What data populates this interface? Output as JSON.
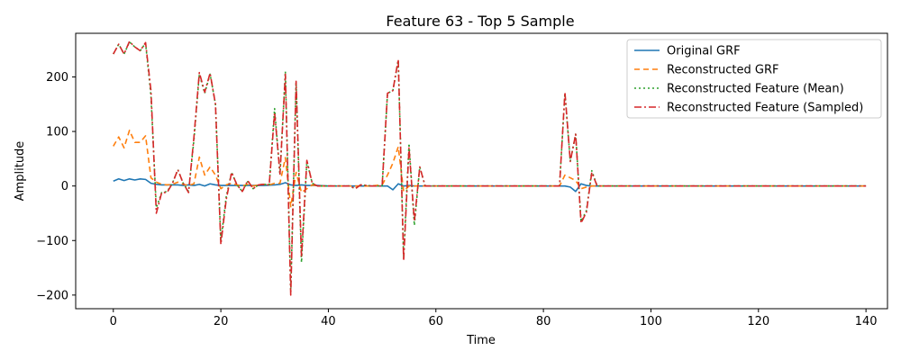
{
  "chart_data": {
    "type": "line",
    "title": "Feature 63 - Top 5 Sample",
    "xlabel": "Time",
    "ylabel": "Amplitude",
    "xlim": [
      -7,
      144
    ],
    "ylim": [
      -225,
      280
    ],
    "xticks": [
      0,
      20,
      40,
      60,
      80,
      100,
      120,
      140
    ],
    "yticks": [
      -200,
      -100,
      0,
      100,
      200
    ],
    "grid": false,
    "legend_position": "top-right",
    "series": [
      {
        "name": "Original GRF",
        "color": "#1f77b4",
        "dash": "solid",
        "points": [
          [
            0,
            9
          ],
          [
            1,
            13
          ],
          [
            2,
            10
          ],
          [
            3,
            13
          ],
          [
            4,
            11
          ],
          [
            5,
            13
          ],
          [
            6,
            12
          ],
          [
            7,
            5
          ],
          [
            8,
            3
          ],
          [
            9,
            2
          ],
          [
            10,
            2
          ],
          [
            11,
            2
          ],
          [
            12,
            2
          ],
          [
            13,
            1
          ],
          [
            14,
            2
          ],
          [
            15,
            1
          ],
          [
            16,
            3
          ],
          [
            17,
            0
          ],
          [
            18,
            4
          ],
          [
            19,
            2
          ],
          [
            20,
            1
          ],
          [
            22,
            1
          ],
          [
            25,
            1
          ],
          [
            28,
            1
          ],
          [
            30,
            2
          ],
          [
            31,
            3
          ],
          [
            32,
            6
          ],
          [
            33,
            2
          ],
          [
            34,
            1
          ],
          [
            35,
            2
          ],
          [
            36,
            1
          ],
          [
            38,
            1
          ],
          [
            40,
            0
          ],
          [
            44,
            0
          ],
          [
            48,
            0
          ],
          [
            50,
            0
          ],
          [
            51,
            0
          ],
          [
            52,
            -7
          ],
          [
            53,
            4
          ],
          [
            54,
            0
          ],
          [
            55,
            1
          ],
          [
            56,
            0
          ],
          [
            58,
            0
          ],
          [
            60,
            0
          ],
          [
            70,
            0
          ],
          [
            80,
            0
          ],
          [
            84,
            0
          ],
          [
            85,
            -2
          ],
          [
            86,
            -10
          ],
          [
            87,
            4
          ],
          [
            88,
            1
          ],
          [
            89,
            0
          ],
          [
            90,
            0
          ],
          [
            100,
            0
          ],
          [
            110,
            0
          ],
          [
            120,
            0
          ],
          [
            130,
            0
          ],
          [
            140,
            0
          ]
        ]
      },
      {
        "name": "Reconstructed GRF",
        "color": "#ff7f0e",
        "dash": "6,4",
        "points": [
          [
            0,
            73
          ],
          [
            1,
            90
          ],
          [
            2,
            70
          ],
          [
            3,
            102
          ],
          [
            4,
            80
          ],
          [
            5,
            80
          ],
          [
            6,
            92
          ],
          [
            7,
            15
          ],
          [
            8,
            7
          ],
          [
            9,
            3
          ],
          [
            10,
            2
          ],
          [
            11,
            3
          ],
          [
            12,
            7
          ],
          [
            13,
            3
          ],
          [
            14,
            1
          ],
          [
            15,
            4
          ],
          [
            16,
            53
          ],
          [
            17,
            20
          ],
          [
            18,
            35
          ],
          [
            19,
            20
          ],
          [
            20,
            -5
          ],
          [
            21,
            2
          ],
          [
            22,
            5
          ],
          [
            23,
            2
          ],
          [
            24,
            0
          ],
          [
            25,
            3
          ],
          [
            26,
            0
          ],
          [
            27,
            2
          ],
          [
            28,
            3
          ],
          [
            29,
            2
          ],
          [
            30,
            5
          ],
          [
            31,
            5
          ],
          [
            32,
            52
          ],
          [
            33,
            -38
          ],
          [
            34,
            25
          ],
          [
            35,
            -12
          ],
          [
            36,
            -5
          ],
          [
            37,
            2
          ],
          [
            38,
            0
          ],
          [
            40,
            0
          ],
          [
            44,
            0
          ],
          [
            48,
            0
          ],
          [
            50,
            2
          ],
          [
            51,
            20
          ],
          [
            52,
            42
          ],
          [
            53,
            72
          ],
          [
            54,
            -10
          ],
          [
            55,
            0
          ],
          [
            56,
            0
          ],
          [
            57,
            0
          ],
          [
            58,
            0
          ],
          [
            60,
            0
          ],
          [
            70,
            0
          ],
          [
            80,
            0
          ],
          [
            83,
            0
          ],
          [
            84,
            20
          ],
          [
            85,
            15
          ],
          [
            86,
            10
          ],
          [
            87,
            -5
          ],
          [
            88,
            -2
          ],
          [
            89,
            0
          ],
          [
            90,
            0
          ],
          [
            100,
            0
          ],
          [
            110,
            0
          ],
          [
            120,
            0
          ],
          [
            130,
            0
          ],
          [
            140,
            0
          ]
        ]
      },
      {
        "name": "Reconstructed Feature (Mean)",
        "color": "#2ca02c",
        "dash": "2,3",
        "points": [
          [
            0,
            242
          ],
          [
            1,
            260
          ],
          [
            2,
            242
          ],
          [
            3,
            264
          ],
          [
            4,
            255
          ],
          [
            5,
            248
          ],
          [
            6,
            262
          ],
          [
            7,
            165
          ],
          [
            8,
            -40
          ],
          [
            9,
            -12
          ],
          [
            10,
            -10
          ],
          [
            11,
            5
          ],
          [
            12,
            30
          ],
          [
            13,
            5
          ],
          [
            14,
            -10
          ],
          [
            15,
            85
          ],
          [
            16,
            205
          ],
          [
            17,
            170
          ],
          [
            18,
            205
          ],
          [
            19,
            150
          ],
          [
            20,
            -100
          ],
          [
            21,
            -20
          ],
          [
            22,
            25
          ],
          [
            23,
            2
          ],
          [
            24,
            -10
          ],
          [
            25,
            8
          ],
          [
            26,
            -5
          ],
          [
            27,
            2
          ],
          [
            28,
            3
          ],
          [
            29,
            2
          ],
          [
            30,
            142
          ],
          [
            31,
            20
          ],
          [
            32,
            210
          ],
          [
            33,
            -190
          ],
          [
            34,
            190
          ],
          [
            35,
            -140
          ],
          [
            36,
            45
          ],
          [
            37,
            5
          ],
          [
            38,
            0
          ],
          [
            40,
            0
          ],
          [
            44,
            0
          ],
          [
            45,
            -5
          ],
          [
            46,
            2
          ],
          [
            48,
            0
          ],
          [
            50,
            0
          ],
          [
            51,
            170
          ],
          [
            52,
            175
          ],
          [
            53,
            230
          ],
          [
            54,
            -130
          ],
          [
            55,
            78
          ],
          [
            56,
            -72
          ],
          [
            57,
            35
          ],
          [
            58,
            0
          ],
          [
            60,
            0
          ],
          [
            70,
            0
          ],
          [
            80,
            0
          ],
          [
            83,
            0
          ],
          [
            84,
            170
          ],
          [
            85,
            45
          ],
          [
            86,
            95
          ],
          [
            87,
            -65
          ],
          [
            88,
            -45
          ],
          [
            89,
            28
          ],
          [
            90,
            0
          ],
          [
            100,
            0
          ],
          [
            110,
            0
          ],
          [
            120,
            0
          ],
          [
            130,
            0
          ],
          [
            140,
            0
          ]
        ]
      },
      {
        "name": "Reconstructed Feature (Sampled)",
        "color": "#d62728",
        "dash": "8,3,2,3",
        "points": [
          [
            0,
            242
          ],
          [
            1,
            260
          ],
          [
            2,
            242
          ],
          [
            3,
            265
          ],
          [
            4,
            255
          ],
          [
            5,
            248
          ],
          [
            6,
            263
          ],
          [
            7,
            175
          ],
          [
            8,
            -50
          ],
          [
            9,
            -12
          ],
          [
            10,
            -12
          ],
          [
            11,
            5
          ],
          [
            12,
            30
          ],
          [
            13,
            5
          ],
          [
            14,
            -12
          ],
          [
            15,
            90
          ],
          [
            16,
            208
          ],
          [
            17,
            172
          ],
          [
            18,
            207
          ],
          [
            19,
            150
          ],
          [
            20,
            -107
          ],
          [
            21,
            -25
          ],
          [
            22,
            25
          ],
          [
            23,
            2
          ],
          [
            24,
            -10
          ],
          [
            25,
            10
          ],
          [
            26,
            -5
          ],
          [
            27,
            2
          ],
          [
            28,
            3
          ],
          [
            29,
            2
          ],
          [
            30,
            135
          ],
          [
            31,
            22
          ],
          [
            32,
            205
          ],
          [
            33,
            -200
          ],
          [
            34,
            192
          ],
          [
            35,
            -130
          ],
          [
            36,
            47
          ],
          [
            37,
            5
          ],
          [
            38,
            0
          ],
          [
            40,
            0
          ],
          [
            44,
            0
          ],
          [
            45,
            -5
          ],
          [
            46,
            2
          ],
          [
            48,
            0
          ],
          [
            50,
            0
          ],
          [
            51,
            170
          ],
          [
            52,
            175
          ],
          [
            53,
            232
          ],
          [
            54,
            -137
          ],
          [
            55,
            70
          ],
          [
            56,
            -65
          ],
          [
            57,
            35
          ],
          [
            58,
            0
          ],
          [
            60,
            0
          ],
          [
            70,
            0
          ],
          [
            80,
            0
          ],
          [
            83,
            0
          ],
          [
            84,
            172
          ],
          [
            85,
            45
          ],
          [
            86,
            95
          ],
          [
            87,
            -68
          ],
          [
            88,
            -48
          ],
          [
            89,
            25
          ],
          [
            90,
            0
          ],
          [
            100,
            0
          ],
          [
            110,
            0
          ],
          [
            120,
            0
          ],
          [
            130,
            0
          ],
          [
            140,
            0
          ]
        ]
      }
    ]
  }
}
